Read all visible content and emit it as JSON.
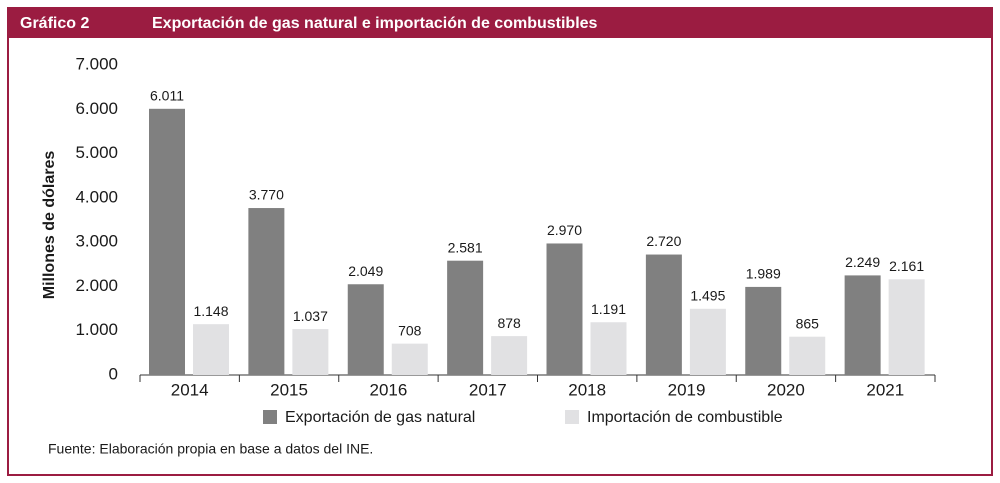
{
  "chart_data": {
    "type": "bar",
    "figure_label": "Gráfico 2",
    "title": "Exportación de gas natural e importación de combustibles",
    "ylabel": "Millones de dólares",
    "source": "Fuente: Elaboración propia en base a datos del INE.",
    "categories": [
      "2014",
      "2015",
      "2016",
      "2017",
      "2018",
      "2019",
      "2020",
      "2021"
    ],
    "series": [
      {
        "name": "Exportación de gas natural",
        "color": "#808080",
        "values": [
          6011,
          3770,
          2049,
          2581,
          2970,
          2720,
          1989,
          2249
        ],
        "value_labels": [
          "6.011",
          "3.770",
          "2.049",
          "2.581",
          "2.970",
          "2.720",
          "1.989",
          "2.249"
        ]
      },
      {
        "name": "Importación de combustible",
        "color": "#e1e1e3",
        "values": [
          1148,
          1037,
          708,
          878,
          1191,
          1495,
          865,
          2161
        ],
        "value_labels": [
          "1.148",
          "1.037",
          "708",
          "878",
          "1.191",
          "1.495",
          "865",
          "2.161"
        ]
      }
    ],
    "ylim": [
      0,
      7000
    ],
    "yticks": [
      0,
      {
        "value": 1000,
        "label": "1.000"
      },
      {
        "value": 2000,
        "label": "2.000"
      },
      {
        "value": 3000,
        "label": "3.000"
      },
      {
        "value": 4000,
        "label": "4.000"
      },
      {
        "value": 5000,
        "label": "5.000"
      },
      {
        "value": 6000,
        "label": "6.000"
      },
      {
        "value": 7000,
        "label": "7.000"
      }
    ],
    "grid": false,
    "legend": "bottom"
  }
}
